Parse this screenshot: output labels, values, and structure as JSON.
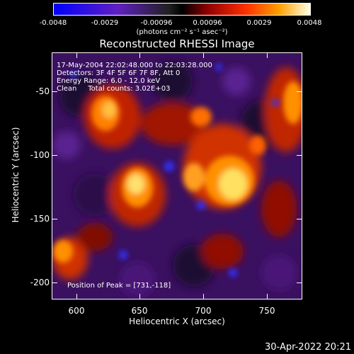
{
  "colorbar": {
    "tick_labels": [
      "-0.0048",
      "-0.0029",
      "-0.00096",
      "0.00096",
      "0.0029",
      "0.0048"
    ],
    "units": "(photons cm⁻² s⁻¹ asec⁻²)"
  },
  "title": "Reconstructed RHESSI Image",
  "info": {
    "line1": "17-May-2004 22:02:48.000 to 22:03:28.000",
    "line2": "Detectors: 3F 4F 5F 6F 7F 8F, Att 0",
    "line3": "Energy Range: 6.0 - 12.0 keV",
    "line4": "Clean     Total counts: 3.02E+03"
  },
  "peak": "Position of Peak = [731,-118]",
  "axes": {
    "xlabel": "Heliocentric X (arcsec)",
    "ylabel": "Heliocentric Y (arcsec)",
    "x_ticks": [
      "600",
      "650",
      "700",
      "750"
    ],
    "y_ticks": [
      "-50",
      "-100",
      "-150",
      "-200"
    ]
  },
  "timestamp": "30-Apr-2022 20:21",
  "colors": {
    "background": "#000000",
    "foreground": "#ffffff"
  }
}
